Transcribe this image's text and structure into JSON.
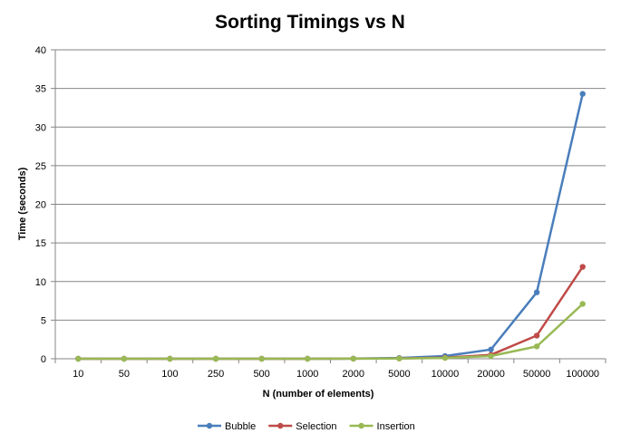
{
  "chart_data": {
    "type": "line",
    "title": "Sorting Timings vs N",
    "xlabel": "N (number of elements)",
    "ylabel": "Time (seconds)",
    "categories": [
      "10",
      "50",
      "100",
      "250",
      "500",
      "1000",
      "2000",
      "5000",
      "10000",
      "20000",
      "50000",
      "100000"
    ],
    "ylim": [
      0,
      40
    ],
    "yticks": [
      0,
      5,
      10,
      15,
      20,
      25,
      30,
      35,
      40
    ],
    "grid": true,
    "legend_position": "bottom",
    "series": [
      {
        "name": "Bubble",
        "color": "#4A7EBB",
        "values": [
          0,
          0,
          0,
          0,
          0,
          0,
          0.02,
          0.1,
          0.35,
          1.2,
          8.6,
          34.3
        ]
      },
      {
        "name": "Selection",
        "color": "#BE4B48",
        "values": [
          0,
          0,
          0,
          0,
          0,
          0,
          0.01,
          0.05,
          0.15,
          0.5,
          3.0,
          11.9
        ]
      },
      {
        "name": "Insertion",
        "color": "#98B954",
        "values": [
          0,
          0,
          0,
          0,
          0,
          0,
          0.01,
          0.03,
          0.1,
          0.35,
          1.6,
          7.1
        ]
      }
    ]
  }
}
